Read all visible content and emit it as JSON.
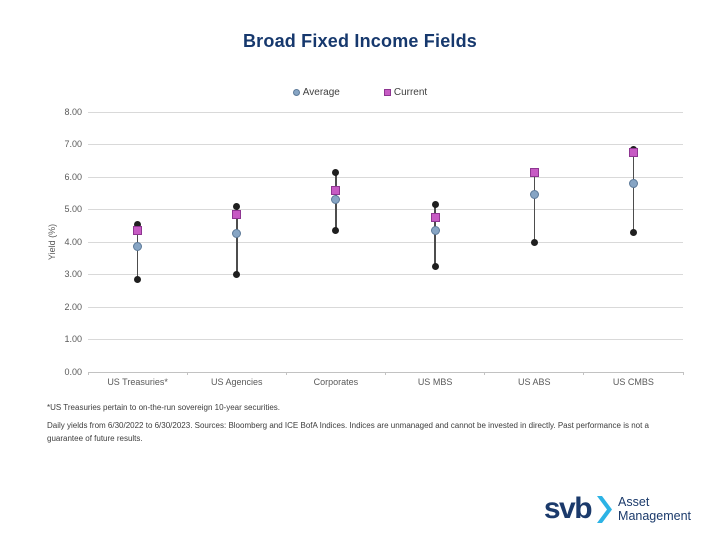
{
  "title": "Broad Fixed Income Fields",
  "legend": {
    "items": [
      {
        "label": "Average",
        "marker": "circle",
        "color": "#87a5c4"
      },
      {
        "label": "Current",
        "marker": "square",
        "color": "#c75bc4"
      }
    ]
  },
  "chart_data": {
    "type": "scatter",
    "title": "Broad Fixed Income Fields",
    "xlabel": "",
    "ylabel": "Yield (%)",
    "ylim": [
      0,
      8
    ],
    "ytick_step": 1,
    "ytick_labels": [
      "0.00",
      "1.00",
      "2.00",
      "3.00",
      "4.00",
      "5.00",
      "6.00",
      "7.00",
      "8.00"
    ],
    "grid": true,
    "legend_position": "top-center",
    "categories": [
      "US Treasuries*",
      "US Agencies",
      "Corporates",
      "US MBS",
      "US ABS",
      "US CMBS"
    ],
    "series": [
      {
        "name": "High",
        "role": "range-max",
        "marker": "circle",
        "color": "#1f1f1f",
        "values": [
          4.55,
          5.1,
          6.15,
          5.15,
          6.15,
          6.85
        ]
      },
      {
        "name": "Low",
        "role": "range-min",
        "marker": "circle",
        "color": "#1f1f1f",
        "values": [
          2.85,
          3.0,
          4.35,
          3.25,
          4.0,
          4.3
        ]
      },
      {
        "name": "Average",
        "role": "point",
        "marker": "circle",
        "color": "#87a5c4",
        "values": [
          3.85,
          4.25,
          5.3,
          4.35,
          5.45,
          5.8
        ]
      },
      {
        "name": "Current",
        "role": "point",
        "marker": "square",
        "color": "#c75bc4",
        "values": [
          4.35,
          4.85,
          5.6,
          4.75,
          6.15,
          6.75
        ]
      }
    ]
  },
  "footnotes": {
    "line1": "*US Treasuries pertain to on-the-run sovereign 10-year securities.",
    "line2": "Daily yields from 6/30/2022 to 6/30/2023. Sources: Bloomberg and ICE BofA Indices. Indices are unmanaged and cannot be invested in directly. Past performance is not a guarantee of future results."
  },
  "logo": {
    "wordmark": "svb",
    "line1": "Asset",
    "line2": "Management",
    "chevron_color": "#2cb3e5",
    "text_color": "#1b3a6b"
  },
  "colors": {
    "title_navy": "#16386d",
    "grid": "#d9d9d9",
    "axis_line": "#c2c2c2",
    "axis_text": "#595959",
    "range_line": "#4d4d4d",
    "marker_black": "#1f1f1f",
    "marker_blue": "#87a5c4",
    "marker_blue_border": "#5d7a99",
    "marker_magenta": "#c75bc4",
    "marker_magenta_border": "#8e3691"
  }
}
